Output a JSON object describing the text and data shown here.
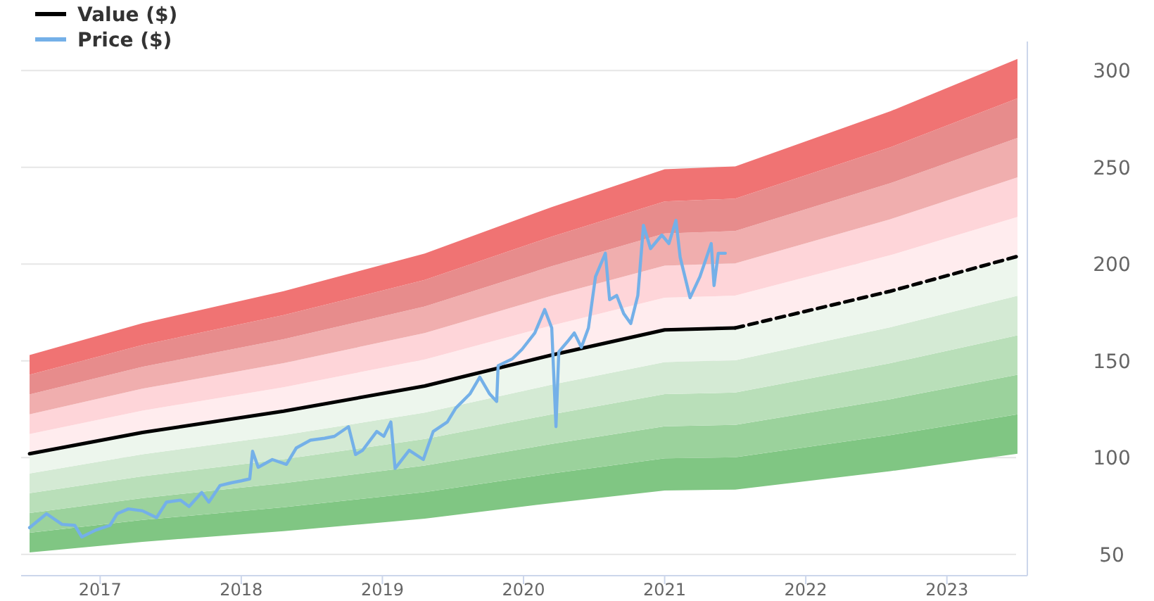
{
  "chart_data": {
    "type": "line",
    "xlim": [
      2016.44,
      2023.57
    ],
    "xticks": [
      2017,
      2018,
      2019,
      2020,
      2021,
      2022,
      2023
    ],
    "ylim": [
      39,
      315
    ],
    "yticks": [
      50,
      100,
      150,
      200,
      250,
      300
    ],
    "grid": "y",
    "legend": "top left",
    "marker": "none",
    "series": [
      {
        "type": "area",
        "color": "#80c683",
        "x": [
          2016.5,
          2017.3,
          2018.3,
          2019.3,
          2020.2,
          2021.0,
          2021.5,
          2022.6,
          2023.5
        ],
        "values": [
          null,
          null,
          null,
          null,
          null,
          null,
          null,
          null,
          null
        ],
        "lower": [
          51,
          56.5,
          62,
          68.5,
          76.5,
          83,
          83.5,
          93,
          102
        ],
        "upper": [
          61.2,
          67.8,
          74.4,
          82.2,
          91.8,
          99.6,
          100.2,
          111.6,
          122.4
        ]
      },
      {
        "type": "area",
        "color": "#9bd29c",
        "x": [
          2016.5,
          2017.3,
          2018.3,
          2019.3,
          2020.2,
          2021.0,
          2021.5,
          2022.6,
          2023.5
        ],
        "values": [
          null,
          null,
          null,
          null,
          null,
          null,
          null,
          null,
          null
        ],
        "lower": [
          61.2,
          67.8,
          74.4,
          82.2,
          91.8,
          99.6,
          100.2,
          111.6,
          122.4
        ],
        "upper": [
          71.4,
          79.1,
          86.8,
          95.9,
          107.1,
          116.2,
          116.9,
          130.2,
          142.8
        ]
      },
      {
        "type": "area",
        "color": "#b9dfb9",
        "x": [
          2016.5,
          2017.3,
          2018.3,
          2019.3,
          2020.2,
          2021.0,
          2021.5,
          2022.6,
          2023.5
        ],
        "values": [
          null,
          null,
          null,
          null,
          null,
          null,
          null,
          null,
          null
        ],
        "lower": [
          71.4,
          79.1,
          86.8,
          95.9,
          107.1,
          116.2,
          116.9,
          130.2,
          142.8
        ],
        "upper": [
          81.6,
          90.4,
          99.2,
          109.6,
          122.4,
          132.8,
          133.6,
          148.8,
          163.2
        ]
      },
      {
        "type": "area",
        "color": "#d4ead4",
        "x": [
          2016.5,
          2017.3,
          2018.3,
          2019.3,
          2020.2,
          2021.0,
          2021.5,
          2022.6,
          2023.5
        ],
        "values": [
          null,
          null,
          null,
          null,
          null,
          null,
          null,
          null,
          null
        ],
        "lower": [
          81.6,
          90.4,
          99.2,
          109.6,
          122.4,
          132.8,
          133.6,
          148.8,
          163.2
        ],
        "upper": [
          91.8,
          101.7,
          111.6,
          123.3,
          137.7,
          149.4,
          150.3,
          167.4,
          183.6
        ]
      },
      {
        "type": "area",
        "color": "#edf6ed",
        "x": [
          2016.5,
          2017.3,
          2018.3,
          2019.3,
          2020.2,
          2021.0,
          2021.5,
          2022.6,
          2023.5
        ],
        "values": [
          null,
          null,
          null,
          null,
          null,
          null,
          null,
          null,
          null
        ],
        "lower": [
          91.8,
          101.7,
          111.6,
          123.3,
          137.7,
          149.4,
          150.3,
          167.4,
          183.6
        ],
        "upper": [
          102,
          113,
          124,
          137,
          153,
          166,
          167,
          186,
          204
        ]
      },
      {
        "type": "area",
        "color": "#ffecee",
        "x": [
          2016.5,
          2017.3,
          2018.3,
          2019.3,
          2020.2,
          2021.0,
          2021.5,
          2022.6,
          2023.5
        ],
        "values": [
          null,
          null,
          null,
          null,
          null,
          null,
          null,
          null,
          null
        ],
        "lower": [
          102,
          113,
          124,
          137,
          153,
          166,
          167,
          186,
          204
        ],
        "upper": [
          112.2,
          124.3,
          136.4,
          150.7,
          168.3,
          182.6,
          183.7,
          204.6,
          224.4
        ]
      },
      {
        "type": "area",
        "color": "#fed5d9",
        "x": [
          2016.5,
          2017.3,
          2018.3,
          2019.3,
          2020.2,
          2021.0,
          2021.5,
          2022.6,
          2023.5
        ],
        "values": [
          null,
          null,
          null,
          null,
          null,
          null,
          null,
          null,
          null
        ],
        "lower": [
          112.2,
          124.3,
          136.4,
          150.7,
          168.3,
          182.6,
          183.7,
          204.6,
          224.4
        ],
        "upper": [
          122.4,
          135.6,
          148.8,
          164.4,
          183.6,
          199.2,
          200.4,
          223.2,
          244.8
        ]
      },
      {
        "type": "area",
        "color": "#f0aeae",
        "x": [
          2016.5,
          2017.3,
          2018.3,
          2019.3,
          2020.2,
          2021.0,
          2021.5,
          2022.6,
          2023.5
        ],
        "values": [
          null,
          null,
          null,
          null,
          null,
          null,
          null,
          null,
          null
        ],
        "lower": [
          122.4,
          135.6,
          148.8,
          164.4,
          183.6,
          199.2,
          200.4,
          223.2,
          244.8
        ],
        "upper": [
          132.6,
          146.9,
          161.2,
          178.1,
          198.9,
          215.8,
          217.1,
          241.8,
          265.2
        ]
      },
      {
        "type": "area",
        "color": "#e78c8c",
        "x": [
          2016.5,
          2017.3,
          2018.3,
          2019.3,
          2020.2,
          2021.0,
          2021.5,
          2022.6,
          2023.5
        ],
        "values": [
          null,
          null,
          null,
          null,
          null,
          null,
          null,
          null,
          null
        ],
        "lower": [
          132.6,
          146.9,
          161.2,
          178.1,
          198.9,
          215.8,
          217.1,
          241.8,
          265.2
        ],
        "upper": [
          142.8,
          158.2,
          173.6,
          191.8,
          214.2,
          232.4,
          233.8,
          260.4,
          285.6
        ]
      },
      {
        "type": "area",
        "color": "#f07373",
        "x": [
          2016.5,
          2017.3,
          2018.3,
          2019.3,
          2020.2,
          2021.0,
          2021.5,
          2022.6,
          2023.5
        ],
        "values": [
          null,
          null,
          null,
          null,
          null,
          null,
          null,
          null,
          null
        ],
        "lower": [
          142.8,
          158.2,
          173.6,
          191.8,
          214.2,
          232.4,
          233.8,
          260.4,
          285.6
        ],
        "upper": [
          153,
          169.5,
          186,
          205.5,
          229.5,
          249,
          250.5,
          279,
          306
        ]
      },
      {
        "name": "Value ($)",
        "type": "line",
        "color": "#000000",
        "line_style": "solid",
        "x": [
          2016.5,
          2017.3,
          2018.3,
          2019.3,
          2020.2,
          2021.0,
          2021.5
        ],
        "values": [
          102,
          113,
          124,
          137,
          153,
          166,
          167
        ]
      },
      {
        "type": "line",
        "color": "#000000",
        "line_style": "dashed",
        "x": [
          2021.5,
          2022.6,
          2023.5
        ],
        "values": [
          167,
          186,
          204
        ]
      },
      {
        "name": "Price ($)",
        "color": "#74b0e8",
        "line_style": "solid",
        "x": [
          2016.5,
          2016.62,
          2016.73,
          2016.82,
          2016.87,
          2016.97,
          2017.07,
          2017.12,
          2017.2,
          2017.3,
          2017.4,
          2017.47,
          2017.57,
          2017.63,
          2017.72,
          2017.77,
          2017.85,
          2017.93,
          2018.0,
          2018.06,
          2018.08,
          2018.12,
          2018.22,
          2018.32,
          2018.39,
          2018.49,
          2018.59,
          2018.66,
          2018.76,
          2018.81,
          2018.86,
          2018.96,
          2019.01,
          2019.06,
          2019.09,
          2019.19,
          2019.29,
          2019.36,
          2019.46,
          2019.52,
          2019.62,
          2019.69,
          2019.76,
          2019.81,
          2019.82,
          2019.92,
          2019.99,
          2020.08,
          2020.15,
          2020.2,
          2020.23,
          2020.25,
          2020.31,
          2020.36,
          2020.41,
          2020.46,
          2020.51,
          2020.58,
          2020.61,
          2020.66,
          2020.71,
          2020.76,
          2020.81,
          2020.85,
          2020.9,
          2020.98,
          2021.03,
          2021.08,
          2021.11,
          2021.18,
          2021.25,
          2021.33,
          2021.35,
          2021.38,
          2021.43
        ],
        "values": [
          63.8,
          71,
          65.5,
          65,
          59,
          62.6,
          65,
          71,
          73.5,
          72.5,
          69,
          77,
          78,
          74.7,
          82,
          77,
          85.6,
          87,
          88,
          89,
          103.3,
          95,
          99,
          96.5,
          105,
          109,
          110,
          111,
          116,
          101.6,
          103.8,
          113.5,
          111,
          118.4,
          94.4,
          103.8,
          99,
          113.5,
          118.4,
          125.6,
          132.9,
          141.6,
          132.9,
          129,
          147.5,
          151,
          156,
          164.4,
          176.5,
          167,
          116,
          154.7,
          159.8,
          164.4,
          157,
          167,
          193.5,
          205.6,
          181.6,
          183.8,
          174.4,
          169.3,
          183.8,
          220,
          208,
          215,
          210.6,
          222.6,
          203.5,
          182.6,
          193.5,
          210.6,
          188.9,
          205.6,
          205.6
        ]
      }
    ]
  }
}
